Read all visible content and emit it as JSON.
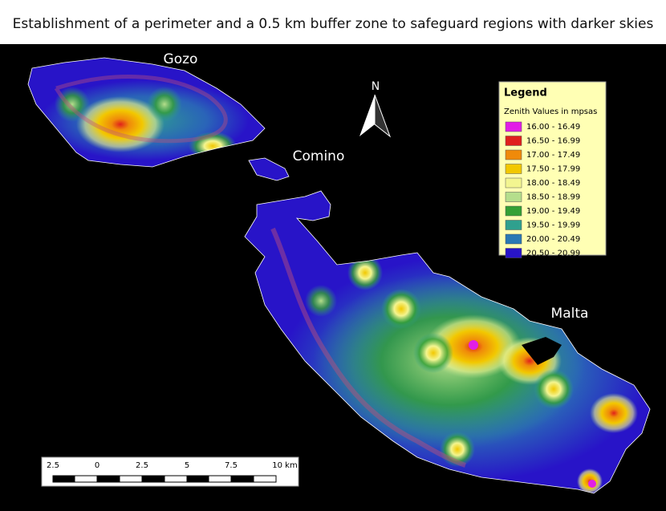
{
  "title": "Establishment of a perimeter and a 0.5 km buffer zone to safeguard regions with darker skies",
  "places": [
    "Gozo",
    "Comino",
    "Malta"
  ],
  "north": "N",
  "legend": {
    "title": "Legend",
    "subtitle": "Zenith Values in mpsas",
    "items": [
      {
        "label": "16.00 - 16.49",
        "color": "#e21ee6"
      },
      {
        "label": "16.50 - 16.99",
        "color": "#e0201c"
      },
      {
        "label": "17.00 - 17.49",
        "color": "#f08a0a"
      },
      {
        "label": "17.50 - 17.99",
        "color": "#f2c800"
      },
      {
        "label": "18.00 - 18.49",
        "color": "#f3f590"
      },
      {
        "label": "18.50 - 18.99",
        "color": "#b5de8c"
      },
      {
        "label": "19.00 - 19.49",
        "color": "#34a035"
      },
      {
        "label": "19.50 - 19.99",
        "color": "#2fa08e"
      },
      {
        "label": "20.00 - 20.49",
        "color": "#2a78b4"
      },
      {
        "label": "20.50 - 20.99",
        "color": "#2814c8"
      }
    ]
  },
  "scale_bar": {
    "ticks": [
      "2.5",
      "0",
      "2.5",
      "5",
      "7.5",
      "10 km"
    ]
  }
}
